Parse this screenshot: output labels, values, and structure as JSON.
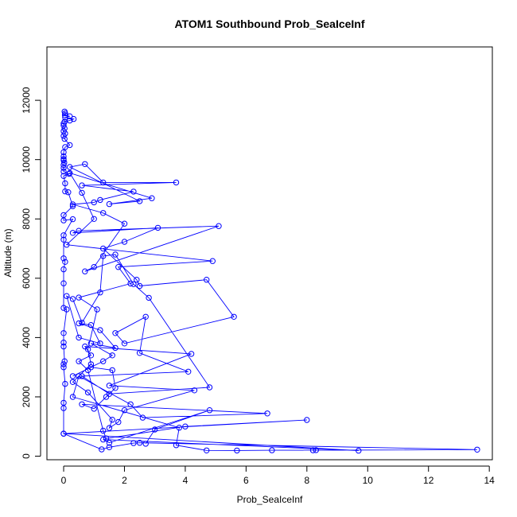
{
  "chart_data": {
    "type": "line",
    "title": "ATOM1 Southbound Prob_SeaIceInf",
    "xlabel": "Prob_SeaIceInf",
    "ylabel": "Altitude (m)",
    "xlim": [
      -0.55,
      14.1
    ],
    "ylim": [
      -120,
      13800
    ],
    "xticks": [
      0,
      2,
      4,
      6,
      8,
      10,
      12,
      14
    ],
    "yticks": [
      0,
      2000,
      4000,
      6000,
      8000,
      10000,
      12000
    ],
    "grid": false,
    "legend": "none",
    "series": [
      {
        "color": "#0000ff",
        "marker": "open-circle",
        "points": [
          [
            0.03,
            11620
          ],
          [
            0.05,
            11560
          ],
          [
            0.04,
            11500
          ],
          [
            0.2,
            11460
          ],
          [
            0.05,
            11420
          ],
          [
            0.33,
            11370
          ],
          [
            0.2,
            11320
          ],
          [
            0.03,
            11280
          ],
          [
            0.0,
            11220
          ],
          [
            0.0,
            11150
          ],
          [
            0.03,
            11050
          ],
          [
            0.0,
            10960
          ],
          [
            0.05,
            10880
          ],
          [
            0.0,
            10800
          ],
          [
            0.03,
            10700
          ],
          [
            0.2,
            10490
          ],
          [
            0.05,
            10420
          ],
          [
            0.0,
            10250
          ],
          [
            0.0,
            10110
          ],
          [
            0.0,
            10020
          ],
          [
            0.0,
            9980
          ],
          [
            0.02,
            9900
          ],
          [
            0.0,
            9820
          ],
          [
            0.0,
            9720
          ],
          [
            0.0,
            9600
          ],
          [
            0.18,
            9520
          ],
          [
            0.0,
            9450
          ],
          [
            0.05,
            9200
          ],
          [
            0.05,
            8930
          ],
          [
            0.15,
            8900
          ],
          [
            0.3,
            8430
          ],
          [
            0.0,
            8130
          ],
          [
            0.0,
            7950
          ],
          [
            0.3,
            7990
          ],
          [
            0.0,
            7450
          ],
          [
            0.0,
            7300
          ],
          [
            0.0,
            6670
          ],
          [
            0.05,
            6550
          ],
          [
            0.0,
            6300
          ],
          [
            0.0,
            5830
          ],
          [
            0.0,
            5000
          ],
          [
            0.1,
            4950
          ],
          [
            0.0,
            4150
          ],
          [
            0.0,
            3830
          ],
          [
            0.0,
            3700
          ],
          [
            0.03,
            3200
          ],
          [
            0.0,
            3100
          ],
          [
            0.0,
            3000
          ],
          [
            0.05,
            2440
          ],
          [
            0.0,
            1800
          ],
          [
            0.0,
            1620
          ],
          [
            0.0,
            760
          ],
          [
            1.25,
            230
          ],
          [
            1.5,
            300
          ],
          [
            2.3,
            440
          ],
          [
            2.5,
            450
          ],
          [
            13.6,
            220
          ],
          [
            8.2,
            200
          ],
          [
            8.3,
            205
          ],
          [
            6.85,
            200
          ],
          [
            5.7,
            190
          ],
          [
            4.7,
            195
          ],
          [
            3.7,
            370
          ],
          [
            3.8,
            960
          ],
          [
            0.3,
            2000
          ],
          [
            0.5,
            2700
          ],
          [
            2.2,
            1750
          ],
          [
            2.6,
            1300
          ],
          [
            6.7,
            1440
          ],
          [
            0.6,
            1750
          ],
          [
            1.0,
            1600
          ],
          [
            1.4,
            2000
          ],
          [
            1.7,
            2300
          ],
          [
            1.6,
            2900
          ],
          [
            0.9,
            3000
          ],
          [
            0.3,
            2700
          ],
          [
            1.3,
            3200
          ],
          [
            1.6,
            3400
          ],
          [
            0.9,
            3800
          ],
          [
            1.7,
            3650
          ],
          [
            1.2,
            4250
          ],
          [
            0.5,
            4480
          ],
          [
            0.9,
            4420
          ],
          [
            1.2,
            3800
          ],
          [
            0.5,
            4000
          ],
          [
            0.1,
            5400
          ],
          [
            0.3,
            5300
          ],
          [
            0.6,
            4500
          ],
          [
            1.2,
            5520
          ],
          [
            1.3,
            6750
          ],
          [
            1.7,
            6800
          ],
          [
            2.3,
            5800
          ],
          [
            2.8,
            5340
          ],
          [
            4.8,
            2320
          ],
          [
            1.5,
            2100
          ],
          [
            0.6,
            2700
          ],
          [
            4.1,
            2850
          ],
          [
            2.5,
            3480
          ],
          [
            2.7,
            4700
          ],
          [
            1.7,
            4150
          ],
          [
            2.0,
            3800
          ],
          [
            5.6,
            4700
          ],
          [
            4.7,
            5950
          ],
          [
            2.5,
            5740
          ],
          [
            2.4,
            5950
          ],
          [
            1.3,
            7000
          ],
          [
            2.0,
            7230
          ],
          [
            3.1,
            7700
          ],
          [
            0.3,
            7530
          ],
          [
            0.5,
            7600
          ],
          [
            5.1,
            7760
          ],
          [
            0.7,
            6230
          ],
          [
            1.0,
            6380
          ],
          [
            2.0,
            7840
          ],
          [
            1.3,
            8200
          ],
          [
            0.3,
            8490
          ],
          [
            1.0,
            8560
          ],
          [
            1.2,
            8640
          ],
          [
            2.3,
            8920
          ],
          [
            0.6,
            9130
          ],
          [
            3.7,
            9230
          ],
          [
            1.3,
            9230
          ],
          [
            0.7,
            9850
          ],
          [
            0.2,
            9750
          ],
          [
            2.5,
            8600
          ],
          [
            1.5,
            8500
          ],
          [
            2.9,
            8700
          ],
          [
            0.2,
            9550
          ],
          [
            0.6,
            8880
          ],
          [
            1.0,
            8000
          ],
          [
            0.1,
            7130
          ],
          [
            4.9,
            6580
          ],
          [
            1.8,
            6380
          ],
          [
            2.2,
            5820
          ],
          [
            0.5,
            5350
          ],
          [
            1.1,
            4950
          ],
          [
            0.8,
            3600
          ],
          [
            0.9,
            3100
          ],
          [
            0.3,
            2500
          ],
          [
            0.8,
            2150
          ],
          [
            1.6,
            1230
          ],
          [
            1.5,
            950
          ],
          [
            1.8,
            1150
          ],
          [
            2.0,
            1550
          ],
          [
            4.3,
            2220
          ],
          [
            1.5,
            2380
          ],
          [
            4.2,
            3450
          ],
          [
            0.7,
            3700
          ],
          [
            0.9,
            3400
          ],
          [
            0.5,
            3200
          ],
          [
            0.8,
            2900
          ],
          [
            1.3,
            860
          ],
          [
            1.4,
            600
          ],
          [
            4.0,
            1000
          ],
          [
            8.0,
            1220
          ],
          [
            0.0,
            760
          ],
          [
            9.7,
            185
          ],
          [
            1.3,
            560
          ],
          [
            1.5,
            450
          ],
          [
            4.8,
            1550
          ],
          [
            3.0,
            900
          ],
          [
            2.7,
            420
          ]
        ]
      }
    ]
  }
}
